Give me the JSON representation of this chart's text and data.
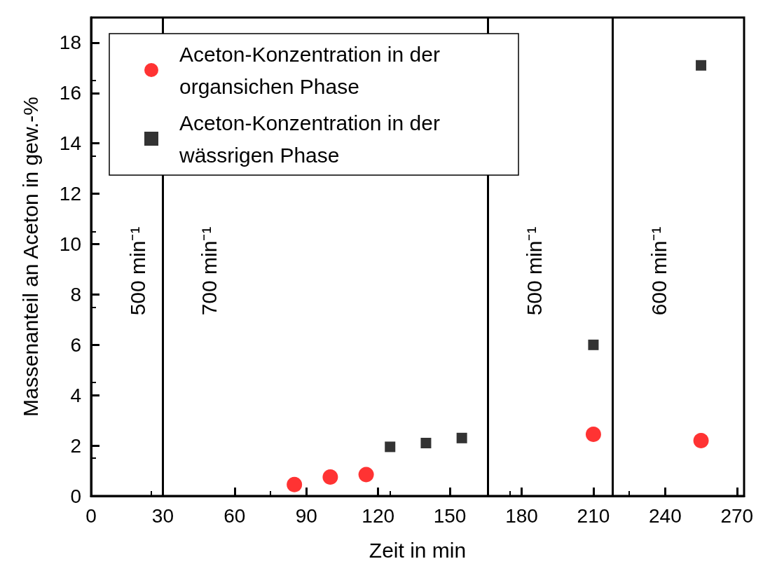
{
  "chart_data": {
    "type": "scatter",
    "xlabel": "Zeit in min",
    "ylabel": "Massenanteil an Aceton in gew.-%",
    "xlim": [
      0,
      273
    ],
    "xticks": [
      0,
      30,
      60,
      90,
      120,
      150,
      180,
      210,
      240,
      270
    ],
    "ylim": [
      0,
      19
    ],
    "yticks": [
      0,
      2,
      4,
      6,
      8,
      10,
      12,
      14,
      16,
      18
    ],
    "legend": "top left",
    "grid": false,
    "series": [
      {
        "name": "Aceton-Konzentration in der organsichen Phase",
        "color": "#ff0000",
        "marker": "circle",
        "x": [
          85,
          100,
          115,
          210,
          255
        ],
        "values": [
          0.45,
          0.75,
          0.85,
          2.45,
          2.2
        ]
      },
      {
        "name": "Aceton-Konzentration in der wässrigen Phase",
        "color": "#000000",
        "marker": "square",
        "x": [
          125,
          140,
          155,
          210,
          255
        ],
        "values": [
          1.95,
          2.1,
          2.3,
          6.0,
          17.1
        ]
      }
    ],
    "ref_lines": [
      {
        "axis": "x",
        "value": 30,
        "color": "#000000"
      },
      {
        "axis": "x",
        "value": 166,
        "color": "#000000"
      },
      {
        "axis": "x",
        "value": 218,
        "color": "#000000"
      }
    ],
    "annotations": [
      "500 min⁻¹",
      "700 min⁻¹",
      "500 min⁻¹",
      "600 min⁻¹"
    ]
  }
}
